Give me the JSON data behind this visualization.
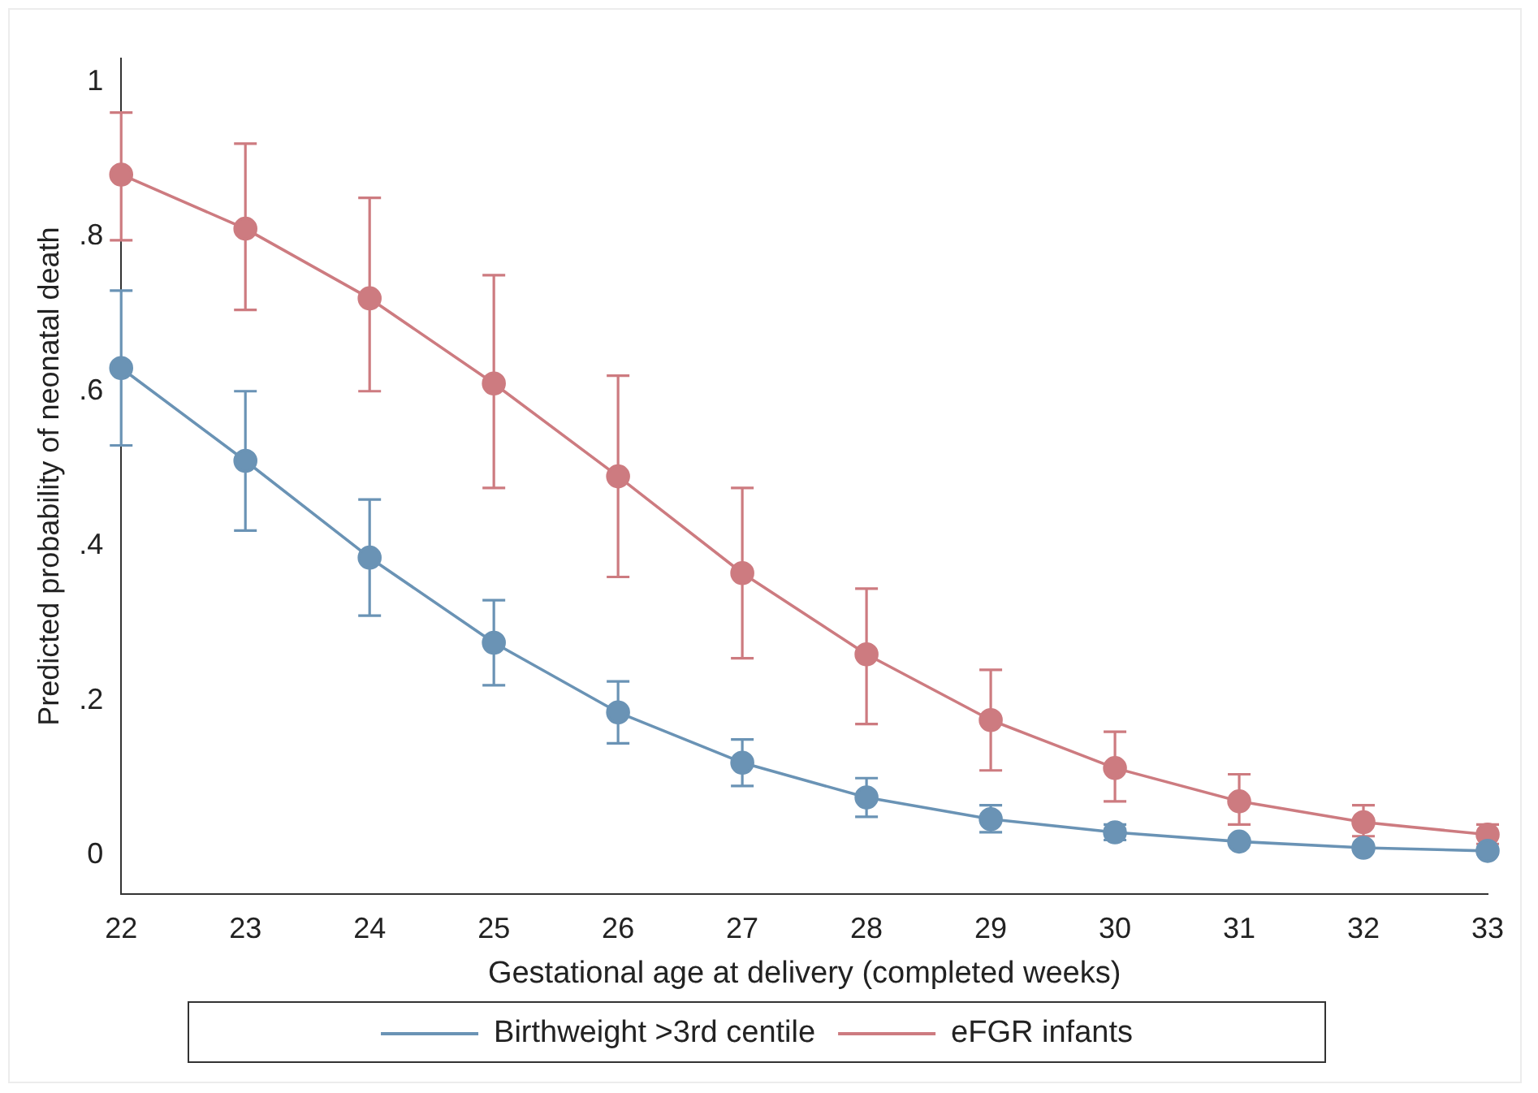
{
  "chart_data": {
    "type": "line",
    "xlabel": "Gestational age at delivery (completed weeks)",
    "ylabel": "Predicted probability of neonatal death",
    "categories": [
      "22",
      "23",
      "24",
      "25",
      "26",
      "27",
      "28",
      "29",
      "30",
      "31",
      "32",
      "33"
    ],
    "series": [
      {
        "name": "Birthweight >3rd centile",
        "color": "#6a93b5",
        "values": [
          0.63,
          0.51,
          0.385,
          0.275,
          0.185,
          0.12,
          0.075,
          0.047,
          0.03,
          0.018,
          0.01,
          0.006
        ],
        "errors": [
          [
            0.53,
            0.73
          ],
          [
            0.42,
            0.6
          ],
          [
            0.31,
            0.46
          ],
          [
            0.22,
            0.33
          ],
          [
            0.145,
            0.225
          ],
          [
            0.09,
            0.15
          ],
          [
            0.05,
            0.1
          ],
          [
            0.03,
            0.065
          ],
          [
            0.02,
            0.04
          ],
          null,
          null,
          [
            0.002,
            0.01
          ]
        ]
      },
      {
        "name": "eFGR infants",
        "color": "#cd7b80",
        "values": [
          0.88,
          0.81,
          0.72,
          0.61,
          0.49,
          0.365,
          0.26,
          0.175,
          0.113,
          0.07,
          0.043,
          0.027
        ],
        "errors": [
          [
            0.795,
            0.96
          ],
          [
            0.705,
            0.92
          ],
          [
            0.6,
            0.85
          ],
          [
            0.475,
            0.75
          ],
          [
            0.36,
            0.62
          ],
          [
            0.255,
            0.475
          ],
          [
            0.17,
            0.345
          ],
          [
            0.11,
            0.24
          ],
          [
            0.07,
            0.16
          ],
          [
            0.04,
            0.105
          ],
          [
            0.025,
            0.065
          ],
          [
            0.015,
            0.04
          ]
        ]
      }
    ],
    "ylim": [
      -0.05,
      1.03
    ],
    "yticks": [
      0,
      {
        "value": 0.2,
        "label": ".2"
      },
      {
        "value": 0.4,
        "label": ".4"
      },
      {
        "value": 0.6,
        "label": ".6"
      },
      {
        "value": 0.8,
        "label": ".8"
      },
      1
    ],
    "grid": false,
    "legend": "bottom",
    "marker": "circle",
    "line_style": "solid"
  }
}
